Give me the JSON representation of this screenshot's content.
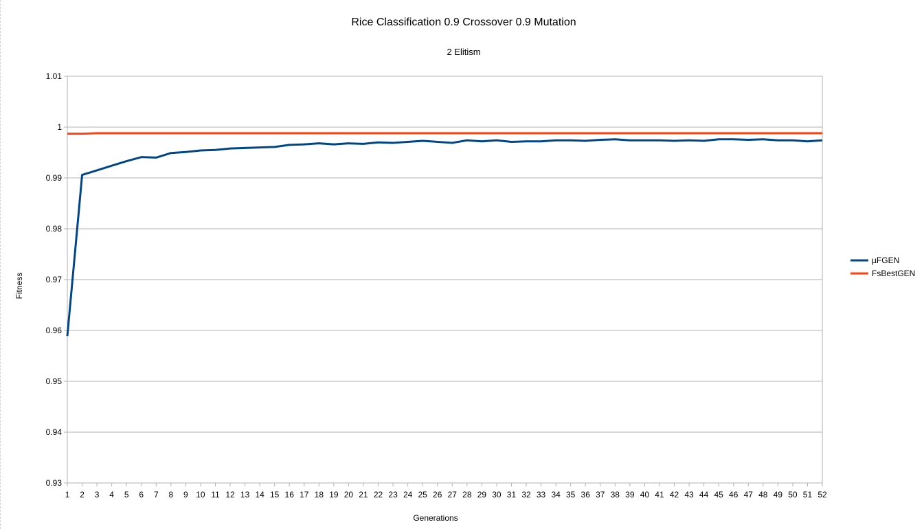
{
  "chart_data": {
    "type": "line",
    "title": "Rice Classification 0.9 Crossover 0.9 Mutation",
    "subtitle": "2 Elitism",
    "xlabel": "Generations",
    "ylabel": "Fitness",
    "ylim": [
      0.93,
      1.01
    ],
    "yticks": [
      "0.93",
      "0.94",
      "0.95",
      "0.96",
      "0.97",
      "0.98",
      "0.99",
      "1",
      "1.01"
    ],
    "grid": "horizontal",
    "legend_position": "right",
    "categories": [
      "1",
      "2",
      "3",
      "4",
      "5",
      "6",
      "7",
      "8",
      "9",
      "10",
      "11",
      "12",
      "13",
      "14",
      "15",
      "16",
      "17",
      "18",
      "19",
      "20",
      "21",
      "22",
      "23",
      "24",
      "25",
      "26",
      "27",
      "28",
      "29",
      "30",
      "31",
      "32",
      "33",
      "34",
      "35",
      "36",
      "37",
      "38",
      "39",
      "40",
      "41",
      "42",
      "43",
      "44",
      "45",
      "46",
      "47",
      "48",
      "49",
      "50",
      "51",
      "52"
    ],
    "series": [
      {
        "name": "µFGEN",
        "color": "#004586",
        "values": [
          0.9589,
          0.9906,
          0.9915,
          0.9924,
          0.9933,
          0.9941,
          0.994,
          0.9949,
          0.9951,
          0.9954,
          0.9955,
          0.9958,
          0.9959,
          0.996,
          0.9961,
          0.9965,
          0.9966,
          0.9968,
          0.9966,
          0.9968,
          0.9967,
          0.997,
          0.9969,
          0.9971,
          0.9973,
          0.9971,
          0.9969,
          0.9974,
          0.9972,
          0.9974,
          0.9971,
          0.9972,
          0.9972,
          0.9974,
          0.9974,
          0.9973,
          0.9975,
          0.9976,
          0.9974,
          0.9974,
          0.9974,
          0.9973,
          0.9974,
          0.9973,
          0.9976,
          0.9976,
          0.9975,
          0.9976,
          0.9974,
          0.9974,
          0.9972,
          0.9974
        ]
      },
      {
        "name": "FsBestGEN",
        "color": "#ff420e",
        "values": [
          0.9987,
          0.9987,
          0.9988,
          0.9988,
          0.9988,
          0.9988,
          0.9988,
          0.9988,
          0.9988,
          0.9988,
          0.9988,
          0.9988,
          0.9988,
          0.9988,
          0.9988,
          0.9988,
          0.9988,
          0.9988,
          0.9988,
          0.9988,
          0.9988,
          0.9988,
          0.9988,
          0.9988,
          0.9988,
          0.9988,
          0.9988,
          0.9988,
          0.9988,
          0.9988,
          0.9988,
          0.9988,
          0.9988,
          0.9988,
          0.9988,
          0.9988,
          0.9988,
          0.9988,
          0.9988,
          0.9988,
          0.9988,
          0.9988,
          0.9988,
          0.9988,
          0.9988,
          0.9988,
          0.9988,
          0.9988,
          0.9988,
          0.9988,
          0.9988,
          0.9988
        ]
      }
    ]
  }
}
